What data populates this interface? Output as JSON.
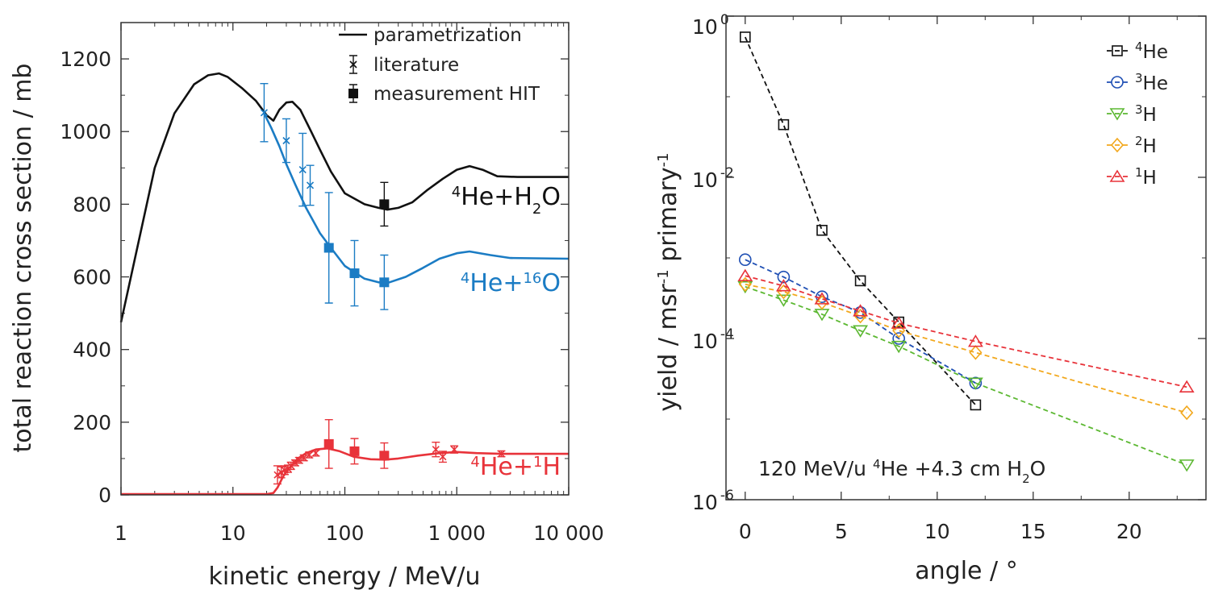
{
  "chart_data": [
    {
      "id": "left",
      "type": "line",
      "xscale": "log",
      "xlim": [
        1,
        10000
      ],
      "ylim": [
        0,
        1300
      ],
      "xlabel": "kinetic energy / MeV/u",
      "ylabel": "total reaction cross section / mb",
      "xticks": [
        {
          "value": 1,
          "label": "1"
        },
        {
          "value": 10,
          "label": "10"
        },
        {
          "value": 100,
          "label": "100"
        },
        {
          "value": 1000,
          "label": "1 000"
        },
        {
          "value": 10000,
          "label": "10 000"
        }
      ],
      "yticks": [
        {
          "value": 0,
          "label": "0"
        },
        {
          "value": 200,
          "label": "200"
        },
        {
          "value": 400,
          "label": "400"
        },
        {
          "value": 600,
          "label": "600"
        },
        {
          "value": 800,
          "label": "800"
        },
        {
          "value": 1000,
          "label": "1000"
        },
        {
          "value": 1200,
          "label": "1200"
        }
      ],
      "legend": [
        {
          "kind": "line",
          "label": "parametrization"
        },
        {
          "kind": "cross",
          "label": "literature"
        },
        {
          "kind": "square",
          "label": "measurement HIT"
        }
      ],
      "legend_position": "top-right",
      "series": [
        {
          "name": "4He+H2O",
          "color": "#111111",
          "label_parts": [
            {
              "t": "4",
              "sup": true
            },
            {
              "t": "He+H"
            },
            {
              "t": "2",
              "sub": true
            },
            {
              "t": "O"
            }
          ],
          "curve": [
            [
              1,
              475
            ],
            [
              2,
              900
            ],
            [
              3,
              1050
            ],
            [
              4.5,
              1130
            ],
            [
              6,
              1155
            ],
            [
              7.5,
              1160
            ],
            [
              9,
              1150
            ],
            [
              12,
              1120
            ],
            [
              16,
              1085
            ],
            [
              20,
              1045
            ],
            [
              23,
              1030
            ],
            [
              26,
              1060
            ],
            [
              30,
              1080
            ],
            [
              34,
              1082
            ],
            [
              40,
              1060
            ],
            [
              50,
              1000
            ],
            [
              60,
              950
            ],
            [
              75,
              890
            ],
            [
              100,
              830
            ],
            [
              150,
              800
            ],
            [
              200,
              790
            ],
            [
              240,
              785
            ],
            [
              300,
              790
            ],
            [
              400,
              805
            ],
            [
              550,
              840
            ],
            [
              750,
              870
            ],
            [
              1000,
              895
            ],
            [
              1300,
              905
            ],
            [
              1700,
              895
            ],
            [
              2300,
              877
            ],
            [
              3500,
              875
            ],
            [
              10000,
              875
            ]
          ],
          "literature": [],
          "measurements": [
            {
              "x": 225,
              "y": 800,
              "err": 60
            }
          ]
        },
        {
          "name": "4He+16O",
          "color": "#1b7cc4",
          "label_parts": [
            {
              "t": "4",
              "sup": true
            },
            {
              "t": "He+"
            },
            {
              "t": "16",
              "sup": true
            },
            {
              "t": "O"
            }
          ],
          "curve": [
            [
              19,
              1050
            ],
            [
              22,
              1010
            ],
            [
              26,
              960
            ],
            [
              30,
              910
            ],
            [
              36,
              855
            ],
            [
              45,
              790
            ],
            [
              60,
              720
            ],
            [
              75,
              680
            ],
            [
              100,
              630
            ],
            [
              150,
              595
            ],
            [
              200,
              585
            ],
            [
              250,
              585
            ],
            [
              350,
              600
            ],
            [
              500,
              625
            ],
            [
              700,
              650
            ],
            [
              1000,
              665
            ],
            [
              1300,
              670
            ],
            [
              2000,
              660
            ],
            [
              3000,
              652
            ],
            [
              10000,
              650
            ]
          ],
          "literature": [
            {
              "x": 19,
              "y": 1052,
              "err": 80
            },
            {
              "x": 30,
              "y": 975,
              "err": 60
            },
            {
              "x": 42,
              "y": 895,
              "err": 100
            },
            {
              "x": 49,
              "y": 852,
              "err": 55
            }
          ],
          "measurements": [
            {
              "x": 72,
              "y": 680,
              "err": 152
            },
            {
              "x": 122,
              "y": 610,
              "err": 90
            },
            {
              "x": 225,
              "y": 585,
              "err": 75
            }
          ]
        },
        {
          "name": "4He+1H",
          "color": "#e8333a",
          "label_parts": [
            {
              "t": "4",
              "sup": true
            },
            {
              "t": "He+"
            },
            {
              "t": "1",
              "sup": true
            },
            {
              "t": "H"
            }
          ],
          "curve": [
            [
              1,
              2
            ],
            [
              20,
              2
            ],
            [
              23,
              5
            ],
            [
              25,
              20
            ],
            [
              28,
              50
            ],
            [
              32,
              75
            ],
            [
              38,
              100
            ],
            [
              45,
              115
            ],
            [
              55,
              125
            ],
            [
              70,
              128
            ],
            [
              90,
              120
            ],
            [
              120,
              105
            ],
            [
              170,
              98
            ],
            [
              230,
              97
            ],
            [
              300,
              100
            ],
            [
              450,
              108
            ],
            [
              700,
              115
            ],
            [
              1000,
              118
            ],
            [
              1500,
              115
            ],
            [
              2500,
              113
            ],
            [
              10000,
              113
            ]
          ],
          "literature": [
            {
              "x": 25,
              "y": 55,
              "err": 25
            },
            {
              "x": 27,
              "y": 62,
              "err": 15
            },
            {
              "x": 29,
              "y": 68,
              "err": 12
            },
            {
              "x": 31,
              "y": 72,
              "err": 10
            },
            {
              "x": 33,
              "y": 80,
              "err": 10
            },
            {
              "x": 36,
              "y": 88,
              "err": 8
            },
            {
              "x": 39,
              "y": 95,
              "err": 8
            },
            {
              "x": 43,
              "y": 102,
              "err": 8
            },
            {
              "x": 48,
              "y": 110,
              "err": 8
            },
            {
              "x": 55,
              "y": 115,
              "err": 8
            },
            {
              "x": 650,
              "y": 125,
              "err": 20
            },
            {
              "x": 750,
              "y": 105,
              "err": 15
            },
            {
              "x": 950,
              "y": 125,
              "err": 10
            },
            {
              "x": 2500,
              "y": 113,
              "err": 8
            }
          ],
          "measurements": [
            {
              "x": 72,
              "y": 140,
              "err": 67
            },
            {
              "x": 122,
              "y": 120,
              "err": 35
            },
            {
              "x": 225,
              "y": 108,
              "err": 35
            }
          ]
        }
      ]
    },
    {
      "id": "right",
      "type": "line",
      "yscale": "log",
      "xlim": [
        -1,
        24
      ],
      "ylim": [
        1e-06,
        1
      ],
      "xlabel": "angle / °",
      "ylabel_parts": [
        {
          "t": "yield / msr"
        },
        {
          "t": "-1",
          "sup": true
        },
        {
          "t": " primary"
        },
        {
          "t": "-1",
          "sup": true
        }
      ],
      "xticks": [
        {
          "value": 0,
          "label": "0"
        },
        {
          "value": 5,
          "label": "5"
        },
        {
          "value": 10,
          "label": "10"
        },
        {
          "value": 15,
          "label": "15"
        },
        {
          "value": 20,
          "label": "20"
        }
      ],
      "yticks": [
        {
          "value": 1,
          "base": "10",
          "exp": "0"
        },
        {
          "value": 0.01,
          "base": "10",
          "exp": "-2"
        },
        {
          "value": 0.0001,
          "base": "10",
          "exp": "-4"
        },
        {
          "value": 1e-06,
          "base": "10",
          "exp": "-6"
        }
      ],
      "annotation_parts": [
        {
          "t": "120 MeV/u "
        },
        {
          "t": "4",
          "sup": true
        },
        {
          "t": "He +4.3 cm H"
        },
        {
          "t": "2",
          "sub": true
        },
        {
          "t": "O"
        }
      ],
      "legend_position": "top-right",
      "series": [
        {
          "name": "4He",
          "mass": "4",
          "element": "He",
          "marker": "square",
          "color": "#111111",
          "x": [
            0,
            2,
            4,
            6,
            8,
            12
          ],
          "y": [
            0.55,
            0.045,
            0.0022,
            0.00052,
            0.00016,
            1.5e-05
          ]
        },
        {
          "name": "3He",
          "mass": "3",
          "element": "He",
          "marker": "circle",
          "color": "#1f4fb4",
          "x": [
            0,
            2,
            4,
            6,
            8,
            12
          ],
          "y": [
            0.00095,
            0.00058,
            0.00033,
            0.00021,
            0.0001,
            2.8e-05
          ]
        },
        {
          "name": "3H",
          "mass": "3",
          "element": "H",
          "marker": "triangle-down",
          "color": "#5cb832",
          "x": [
            0,
            2,
            4,
            6,
            8,
            12,
            23
          ],
          "y": [
            0.00044,
            0.0003,
            0.0002,
            0.000125,
            8e-05,
            2.8e-05,
            2.7e-06
          ]
        },
        {
          "name": "2H",
          "mass": "2",
          "element": "H",
          "marker": "diamond",
          "color": "#f2a81d",
          "x": [
            0,
            2,
            4,
            6,
            8,
            12,
            23
          ],
          "y": [
            0.00047,
            0.00038,
            0.00028,
            0.00019,
            0.000125,
            6.7e-05,
            1.2e-05
          ]
        },
        {
          "name": "1H",
          "mass": "1",
          "element": "H",
          "marker": "triangle-up",
          "color": "#e8333a",
          "x": [
            0,
            2,
            4,
            6,
            8,
            12,
            23
          ],
          "y": [
            0.0006,
            0.00045,
            0.00031,
            0.00022,
            0.000155,
            9.2e-05,
            2.5e-05
          ]
        }
      ]
    }
  ]
}
